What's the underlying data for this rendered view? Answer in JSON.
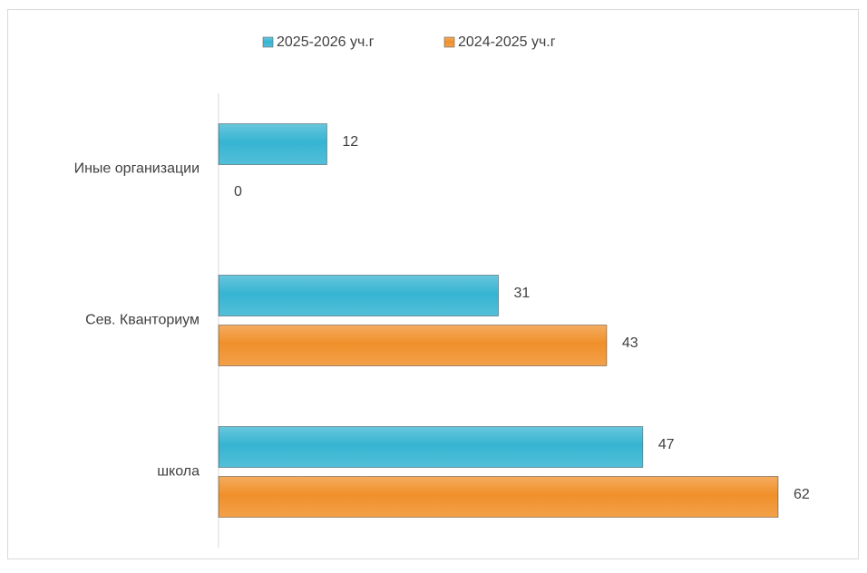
{
  "chart_data": {
    "type": "hbar",
    "categories": [
      "Иные организации",
      "Сев. Кванториум",
      "школа"
    ],
    "series": [
      {
        "name": "2025-2026 уч.г",
        "color": "#35b4d2",
        "values": [
          12,
          31,
          47
        ]
      },
      {
        "name": "2024-2025 уч.г",
        "color": "#f0902a",
        "values": [
          0,
          43,
          62
        ]
      }
    ],
    "legend": "top"
  }
}
